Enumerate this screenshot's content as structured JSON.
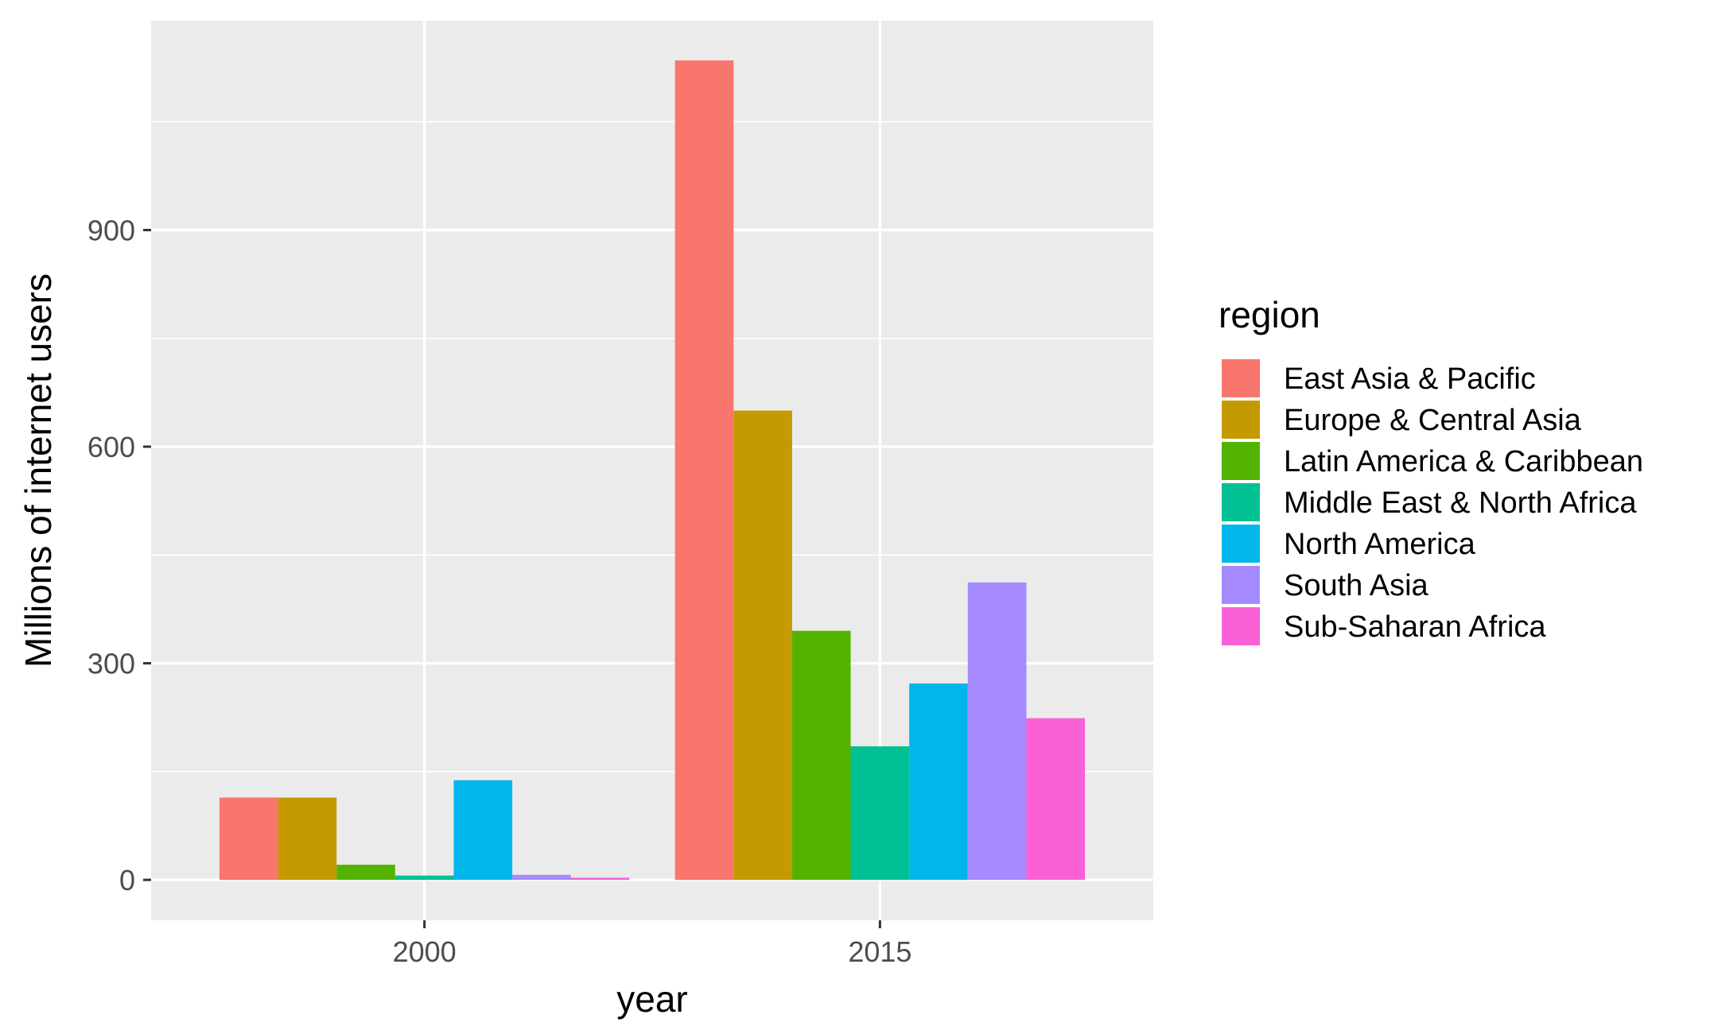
{
  "chart_data": {
    "type": "bar",
    "xlabel": "year",
    "ylabel": "Millions of internet users",
    "categories": [
      "2000",
      "2015"
    ],
    "ylim": [
      -56,
      1190
    ],
    "yticks": [
      0,
      300,
      600,
      900
    ],
    "grid": true,
    "legend": {
      "title": "region",
      "position": "right"
    },
    "series": [
      {
        "name": "East Asia & Pacific",
        "color": "#F8766D",
        "values": [
          114,
          1135
        ]
      },
      {
        "name": "Europe & Central Asia",
        "color": "#C49A00",
        "values": [
          114,
          650
        ]
      },
      {
        "name": "Latin America & Caribbean",
        "color": "#53B400",
        "values": [
          21,
          345
        ]
      },
      {
        "name": "Middle East & North Africa",
        "color": "#00C094",
        "values": [
          6,
          185
        ]
      },
      {
        "name": "North America",
        "color": "#00B6EB",
        "values": [
          138,
          272
        ]
      },
      {
        "name": "South Asia",
        "color": "#A58AFF",
        "values": [
          7,
          412
        ]
      },
      {
        "name": "Sub-Saharan Africa",
        "color": "#FB61D7",
        "values": [
          3,
          224
        ]
      }
    ]
  }
}
